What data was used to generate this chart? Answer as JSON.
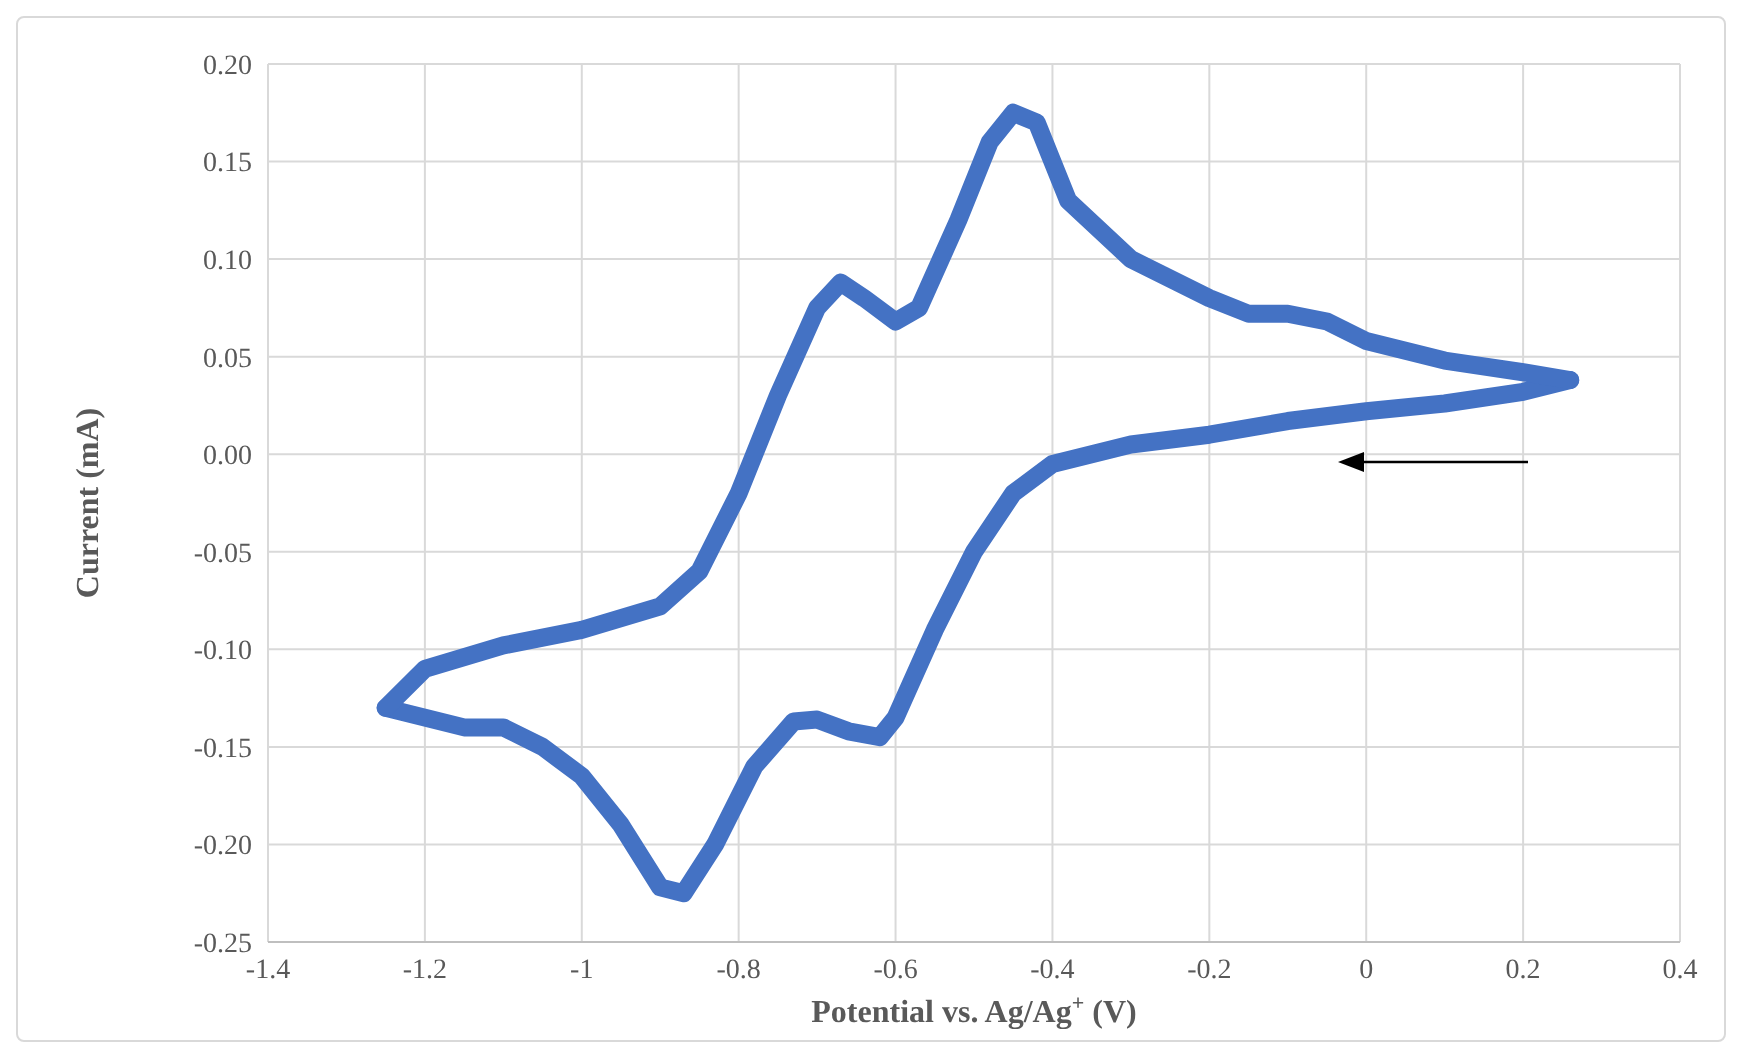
{
  "chart_data": {
    "type": "line",
    "xlabel": "Potential vs. Ag/Ag$^{+}$ (V)",
    "ylabel": "Current (mA)",
    "series": [
      {
        "color": "#4472c4",
        "x": [
          0.26,
          0.2,
          0.1,
          0,
          -0.1,
          -0.2,
          -0.3,
          -0.4,
          -0.45,
          -0.5,
          -0.55,
          -0.6,
          -0.62,
          -0.66,
          -0.7,
          -0.73,
          -0.78,
          -0.83,
          -0.87,
          -0.9,
          -0.95,
          -1.0,
          -1.05,
          -1.1,
          -1.15,
          -1.2,
          -1.25
        ],
        "values": [
          0.038,
          0.032,
          0.026,
          0.022,
          0.017,
          0.01,
          0.005,
          -0.005,
          -0.02,
          -0.05,
          -0.09,
          -0.135,
          -0.145,
          -0.142,
          -0.136,
          -0.137,
          -0.16,
          -0.2,
          -0.225,
          -0.222,
          -0.19,
          -0.165,
          -0.15,
          -0.14,
          -0.14,
          -0.135,
          -0.13
        ]
      },
      {
        "color": "#4472c4",
        "x": [
          -1.25,
          -1.2,
          -1.1,
          -1.0,
          -0.9,
          -0.85,
          -0.8,
          -0.75,
          -0.7,
          -0.67,
          -0.64,
          -0.6,
          -0.57,
          -0.52,
          -0.48,
          -0.45,
          -0.42,
          -0.38,
          -0.3,
          -0.2,
          -0.15,
          -0.1,
          -0.05,
          0,
          0.1,
          0.2,
          0.26
        ],
        "values": [
          -0.13,
          -0.11,
          -0.098,
          -0.09,
          -0.078,
          -0.06,
          -0.02,
          0.03,
          0.075,
          0.088,
          0.08,
          0.068,
          0.075,
          0.12,
          0.16,
          0.175,
          0.17,
          0.13,
          0.1,
          0.08,
          0.072,
          0.072,
          0.068,
          0.058,
          0.048,
          0.042,
          0.038
        ]
      }
    ],
    "xlim": [
      -1.4,
      0.4
    ],
    "xticks": [
      -1.4,
      -1.2,
      -1,
      -0.8,
      -0.6,
      -0.4,
      -0.2,
      0,
      0.2,
      0.4
    ],
    "ylim": [
      -0.25,
      0.2
    ],
    "yticks": [
      {
        "value": -0.25,
        "label": "-0.25"
      },
      {
        "value": -0.2,
        "label": "-0.20"
      },
      {
        "value": -0.15,
        "label": "-0.15"
      },
      {
        "value": -0.1,
        "label": "-0.10"
      },
      {
        "value": -0.05,
        "label": "-0.05"
      },
      {
        "value": 0,
        "label": "0.00"
      },
      {
        "value": 0.05,
        "label": "0.05"
      },
      {
        "value": 0.1,
        "label": "0.10"
      },
      {
        "value": 0.15,
        "label": "0.15"
      },
      {
        "value": 0.2,
        "label": "0.20"
      }
    ],
    "grid": true,
    "marker": "none",
    "line_style": "solid"
  }
}
